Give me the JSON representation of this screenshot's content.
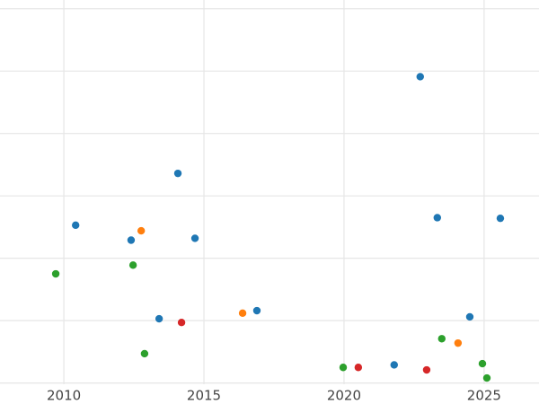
{
  "chart_data": {
    "type": "scatter",
    "xlim": [
      2007.72,
      2026.96
    ],
    "xticks": [
      2010,
      2015,
      2020,
      2025
    ],
    "ylim": [
      -0.02,
      6.14
    ],
    "yticks": [
      0,
      1,
      2,
      3,
      4,
      5,
      6
    ],
    "grid": true,
    "series": [
      {
        "color": "#1f77b4",
        "x": [
          2010.42,
          2012.4,
          2014.07,
          2014.68,
          2013.4,
          2016.89,
          2022.72,
          2023.33,
          2025.58,
          2024.49,
          2021.79
        ],
        "values": [
          2.53,
          2.29,
          3.36,
          2.32,
          1.03,
          1.16,
          4.91,
          2.65,
          2.64,
          1.06,
          0.29
        ]
      },
      {
        "color": "#ff7f0e",
        "x": [
          2012.76,
          2016.38,
          2024.07
        ],
        "values": [
          2.44,
          1.12,
          0.64
        ]
      },
      {
        "color": "#2ca02c",
        "x": [
          2009.71,
          2012.47,
          2012.88,
          2019.97,
          2023.49,
          2024.94,
          2025.1
        ],
        "values": [
          1.75,
          1.89,
          0.47,
          0.25,
          0.71,
          0.31,
          0.08
        ]
      },
      {
        "color": "#d62728",
        "x": [
          2014.2,
          2020.51,
          2022.95
        ],
        "values": [
          0.97,
          0.25,
          0.21
        ]
      }
    ]
  }
}
